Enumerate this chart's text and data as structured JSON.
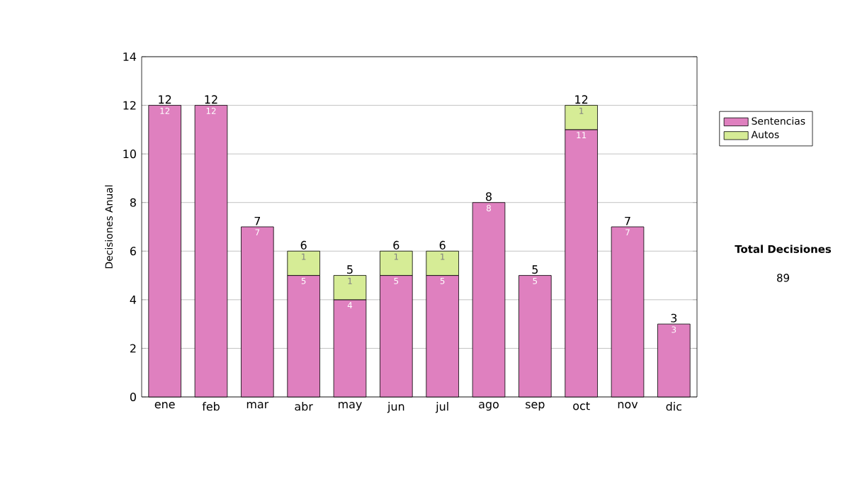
{
  "chart_data": {
    "type": "bar",
    "stacked": true,
    "ylabel": "Decisiones Anual",
    "categories": [
      "ene",
      "feb",
      "mar",
      "abr",
      "may",
      "jun",
      "jul",
      "ago",
      "sep",
      "oct",
      "nov",
      "dic"
    ],
    "series": [
      {
        "name": "Sentencias",
        "color": "#df80bf",
        "values": [
          12,
          12,
          7,
          5,
          4,
          5,
          5,
          8,
          5,
          11,
          7,
          3
        ]
      },
      {
        "name": "Autos",
        "color": "#d6ec96",
        "values": [
          null,
          null,
          null,
          1,
          1,
          1,
          1,
          null,
          null,
          1,
          null,
          null
        ]
      }
    ],
    "totals": [
      "12",
      "12",
      "7",
      "6",
      "5",
      "6",
      "6",
      "8",
      "5",
      "12",
      "7",
      "3"
    ],
    "data_labels": true,
    "ylim": [
      0,
      14
    ],
    "yticks": [
      0,
      2,
      4,
      6,
      8,
      10,
      12,
      14
    ],
    "grid": "y",
    "legend": "right",
    "annotations": [
      "Total Decisiones",
      "89"
    ]
  }
}
